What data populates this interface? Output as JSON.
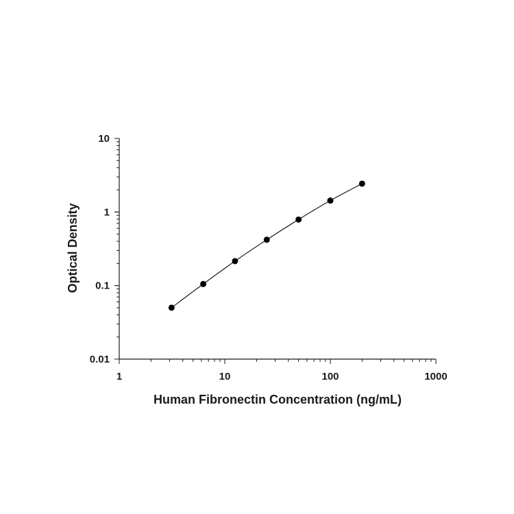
{
  "chart_data": {
    "type": "scatter",
    "title": "",
    "xlabel": "Human Fibronectin Concentration (ng/mL)",
    "ylabel": "Optical Density",
    "x_scale": "log",
    "y_scale": "log",
    "xlim": [
      1,
      1000
    ],
    "ylim": [
      0.01,
      10
    ],
    "x_ticks": [
      "1",
      "10",
      "100",
      "1000"
    ],
    "y_ticks": [
      "10",
      "1",
      "0.1",
      "0.01"
    ],
    "grid": false,
    "series": [
      {
        "x": [
          3.13,
          6.25,
          12.5,
          25,
          50,
          100,
          200
        ],
        "y": [
          0.05,
          0.105,
          0.215,
          0.42,
          0.79,
          1.43,
          2.43
        ],
        "marker": "filled-circle",
        "fit_line": true
      }
    ],
    "colors": {
      "marks": "#000000",
      "axes": "#1a1a1a"
    }
  }
}
